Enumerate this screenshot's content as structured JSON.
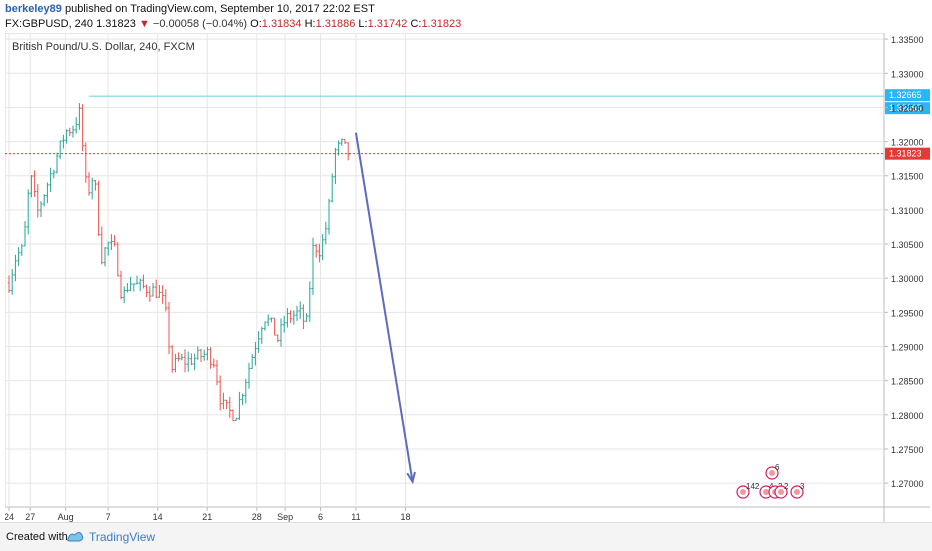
{
  "header": {
    "author": "berkeley89",
    "published": "published on TradingView.com, September 10, 2017 22:02 EST",
    "symbol": "FX:GBPUSD, 240",
    "last": "1.31823",
    "arrow": "▼",
    "change": "−0.00058 (−0.04%)",
    "o_label": "O:",
    "o_value": "1.31834",
    "h_label": "H:",
    "h_value": "1.31886",
    "l_label": "L:",
    "l_value": "1.31742",
    "c_label": "C:",
    "c_value": "1.31823"
  },
  "footer": {
    "created_with": "Created with",
    "brand": "TradingView"
  },
  "colors": {
    "up": "#26a69a",
    "down": "#ef5350",
    "grid": "#e6e6e6",
    "resistance": "#7fd4e6",
    "price_line": "#e53935",
    "arrow": "#5c6bc0",
    "axis_label_bg": "#29b6f6",
    "last_label_bg": "#e53935"
  },
  "chart_data": {
    "type": "candlestick",
    "title": "British Pound/U.S. Dollar, 240, FXCM",
    "x_tick_labels": [
      "24",
      "27",
      "Aug",
      "7",
      "14",
      "21",
      "28",
      "Sep",
      "6",
      "11",
      "18"
    ],
    "y_tick_labels": [
      "1.33500",
      "1.33000",
      "1.32500",
      "1.32000",
      "1.31500",
      "1.31000",
      "1.30500",
      "1.30000",
      "1.29500",
      "1.29000",
      "1.28500",
      "1.28000",
      "1.27500",
      "1.27000"
    ],
    "ylim": [
      1.2665,
      1.3359
    ],
    "grid": true,
    "resistance_level": {
      "value": 1.32665,
      "labels": [
        "1.32665",
        "1.32665"
      ]
    },
    "last_price": {
      "value": 1.31823,
      "label": "1.31823"
    },
    "forecast_arrow": {
      "start": [
        "2017-09-11",
        1.3213
      ],
      "end": [
        "2017-09-19",
        1.2702
      ]
    },
    "path_anchors": [
      [
        "2017-07-24",
        1.2993
      ],
      [
        "2017-07-25",
        1.3033
      ],
      [
        "2017-07-26",
        1.3042
      ],
      [
        "2017-07-27",
        1.3152
      ],
      [
        "2017-07-28",
        1.3096
      ],
      [
        "2017-07-31",
        1.3185
      ],
      [
        "2017-08-01",
        1.3215
      ],
      [
        "2017-08-02",
        1.322
      ],
      [
        "2017-08-03",
        1.3242
      ],
      [
        "2017-08-04",
        1.312
      ],
      [
        "2017-08-05",
        1.3155
      ],
      [
        "2017-08-06",
        1.303
      ],
      [
        "2017-08-07",
        1.305
      ],
      [
        "2017-08-08",
        1.304
      ],
      [
        "2017-08-09",
        1.297
      ],
      [
        "2017-08-10",
        1.2995
      ],
      [
        "2017-08-11",
        1.299
      ],
      [
        "2017-08-14",
        1.298
      ],
      [
        "2017-08-15",
        1.296
      ],
      [
        "2017-08-16",
        1.2868
      ],
      [
        "2017-08-17",
        1.288
      ],
      [
        "2017-08-18",
        1.2878
      ],
      [
        "2017-08-21",
        1.289
      ],
      [
        "2017-08-22",
        1.2878
      ],
      [
        "2017-08-23",
        1.2815
      ],
      [
        "2017-08-24",
        1.2805
      ],
      [
        "2017-08-25",
        1.28
      ],
      [
        "2017-08-28",
        1.291
      ],
      [
        "2017-08-29",
        1.2945
      ],
      [
        "2017-08-30",
        1.2932
      ],
      [
        "2017-08-31",
        1.291
      ],
      [
        "2017-09-01",
        1.294
      ],
      [
        "2017-09-03",
        1.295
      ],
      [
        "2017-09-04",
        1.293
      ],
      [
        "2017-09-05",
        1.305
      ],
      [
        "2017-09-06",
        1.304
      ],
      [
        "2017-09-07",
        1.3085
      ],
      [
        "2017-09-08",
        1.3185
      ],
      [
        "2017-09-09",
        1.3195
      ],
      [
        "2017-09-10",
        1.3182
      ]
    ],
    "ideas_count_labels": [
      "6",
      "142",
      "4",
      "2",
      "2",
      "3"
    ]
  }
}
